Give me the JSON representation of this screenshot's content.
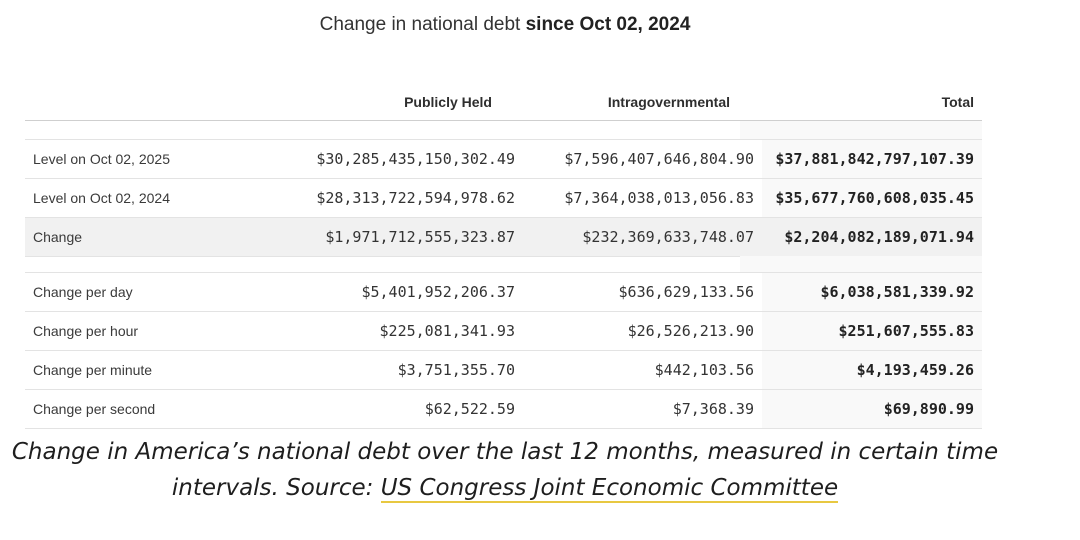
{
  "title": {
    "prefix": "Change in national debt ",
    "bold": "since Oct 02, 2024"
  },
  "columns": [
    "Publicly Held",
    "Intragovernmental",
    "Total"
  ],
  "levels": [
    {
      "label": "Level on Oct 02, 2025",
      "publicly_held": "$30,285,435,150,302.49",
      "intragovernmental": "$7,596,407,646,804.90",
      "total": "$37,881,842,797,107.39"
    },
    {
      "label": "Level on Oct 02, 2024",
      "publicly_held": "$28,313,722,594,978.62",
      "intragovernmental": "$7,364,038,013,056.83",
      "total": "$35,677,760,608,035.45"
    },
    {
      "label": "Change",
      "publicly_held": "$1,971,712,555,323.87",
      "intragovernmental": "$232,369,633,748.07",
      "total": "$2,204,082,189,071.94"
    }
  ],
  "rates": [
    {
      "label": "Change per day",
      "publicly_held": "$5,401,952,206.37",
      "intragovernmental": "$636,629,133.56",
      "total": "$6,038,581,339.92"
    },
    {
      "label": "Change per hour",
      "publicly_held": "$225,081,341.93",
      "intragovernmental": "$26,526,213.90",
      "total": "$251,607,555.83"
    },
    {
      "label": "Change per minute",
      "publicly_held": "$3,751,355.70",
      "intragovernmental": "$442,103.56",
      "total": "$4,193,459.26"
    },
    {
      "label": "Change per second",
      "publicly_held": "$62,522.59",
      "intragovernmental": "$7,368.39",
      "total": "$69,890.99"
    }
  ],
  "caption": {
    "text": "Change in America’s national debt over the last 12 months, measured in certain time intervals. Source: ",
    "link_text": "US Congress Joint Economic Committee"
  },
  "colors": {
    "highlight_row": "#f1f1f1",
    "total_column": "#f9f9f9",
    "link_underline": "#e8c841"
  }
}
